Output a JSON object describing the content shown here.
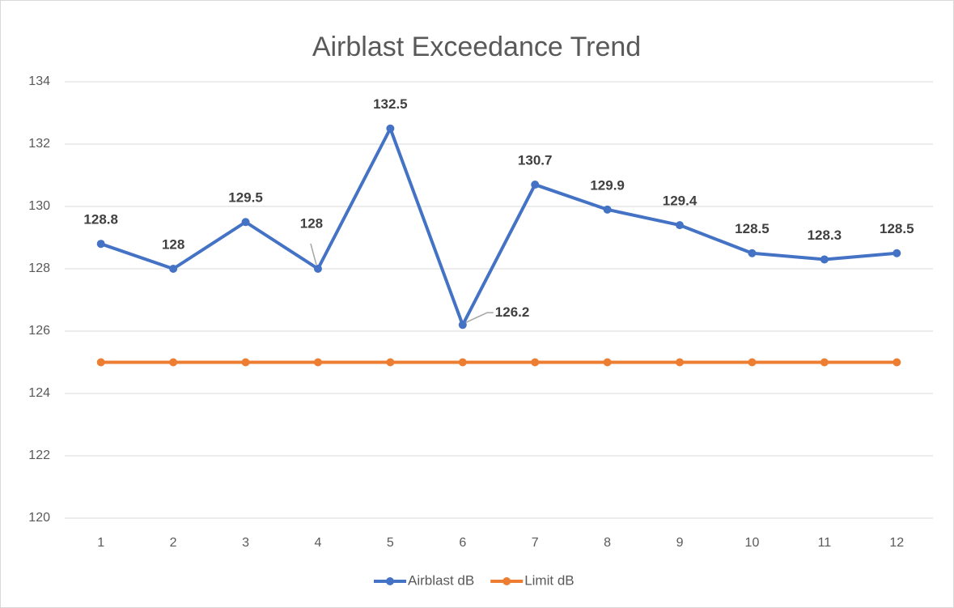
{
  "chart_data": {
    "type": "line",
    "title": "Airblast Exceedance Trend",
    "categories": [
      "1",
      "2",
      "3",
      "4",
      "5",
      "6",
      "7",
      "8",
      "9",
      "10",
      "11",
      "12"
    ],
    "series": [
      {
        "name": "Airblast dB",
        "color": "#4472c4",
        "values": [
          128.8,
          128,
          129.5,
          128,
          132.5,
          126.2,
          130.7,
          129.9,
          129.4,
          128.5,
          128.3,
          128.5
        ],
        "data_labels": true
      },
      {
        "name": "Limit dB",
        "color": "#ed7d31",
        "values": [
          125,
          125,
          125,
          125,
          125,
          125,
          125,
          125,
          125,
          125,
          125,
          125
        ],
        "data_labels": false
      }
    ],
    "ylim": [
      120,
      134
    ],
    "yticks": [
      120,
      122,
      124,
      126,
      128,
      130,
      132,
      134
    ],
    "grid": true,
    "legend": "bottom"
  }
}
